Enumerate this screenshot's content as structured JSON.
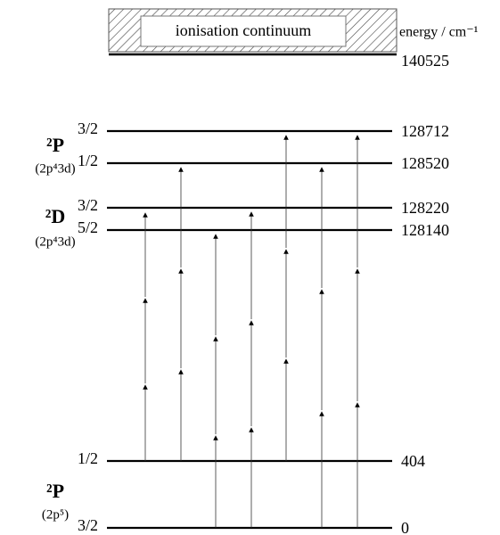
{
  "continuum": "ionisation continuum",
  "axis_label": "energy / cm⁻¹",
  "limit": 140525,
  "levels": [
    {
      "j": "3/2",
      "energy": 128712
    },
    {
      "j": "1/2",
      "energy": 128520
    },
    {
      "j": "3/2",
      "energy": 128220
    },
    {
      "j": "5/2",
      "energy": 128140
    },
    {
      "j": "1/2",
      "energy": 404
    },
    {
      "j": "3/2",
      "energy": 0
    }
  ],
  "terms": [
    {
      "term": "²P",
      "config": "(2p⁴3d)"
    },
    {
      "term": "²D",
      "config": "(2p⁴3d)"
    },
    {
      "term": "²P",
      "config": "(2p⁵)"
    }
  ]
}
